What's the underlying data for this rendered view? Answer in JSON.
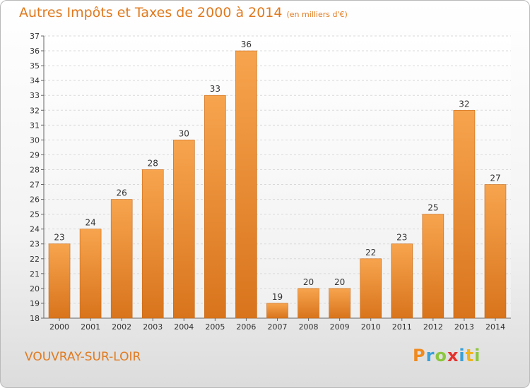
{
  "header": {
    "title": "Autres Impôts et Taxes de 2000 à 2014",
    "unit": "(en milliers d'€)"
  },
  "footer": {
    "commune": "VOUVRAY-SUR-LOIR",
    "brand_letters": [
      "P",
      "r",
      "o",
      "x",
      "i",
      "t",
      "i"
    ],
    "brand_colors": [
      "#f08a1d",
      "#3aa0d8",
      "#8cc63f",
      "#e5322d",
      "#3aa0d8",
      "#f0b41d",
      "#8cc63f"
    ]
  },
  "chart_data": {
    "type": "bar",
    "categories": [
      "2000",
      "2001",
      "2002",
      "2003",
      "2004",
      "2005",
      "2006",
      "2007",
      "2008",
      "2009",
      "2010",
      "2011",
      "2012",
      "2013",
      "2014"
    ],
    "values": [
      23,
      24,
      26,
      28,
      30,
      33,
      36,
      19,
      20,
      20,
      22,
      23,
      25,
      32,
      27
    ],
    "ylim": [
      18,
      37
    ],
    "yticks": [
      "18",
      "19",
      "20",
      "21",
      "22",
      "23",
      "24",
      "25",
      "26",
      "27",
      "28",
      "29",
      "30",
      "31",
      "32",
      "33",
      "34",
      "35",
      "36",
      "37"
    ],
    "bar_color": "#f39a3b",
    "grid": true
  }
}
